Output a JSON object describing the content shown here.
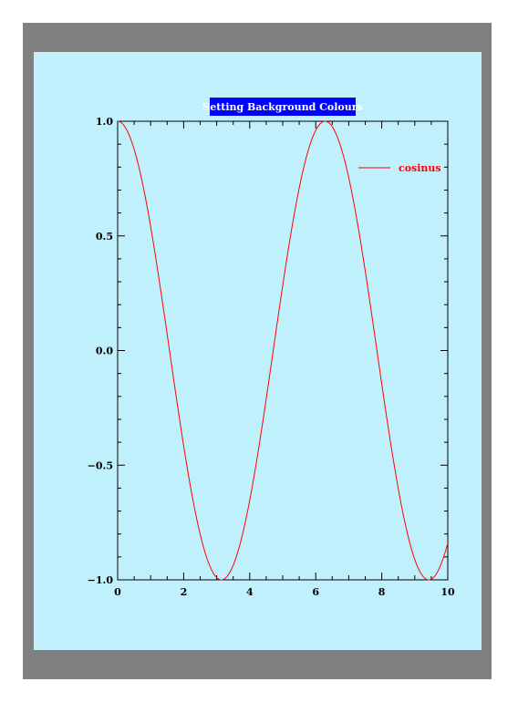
{
  "chart_data": {
    "type": "line",
    "title": "Setting Background Colours",
    "xlabel": "",
    "ylabel": "",
    "xlim": [
      0,
      10
    ],
    "ylim": [
      -1.0,
      1.0
    ],
    "x_ticks": [
      "0",
      "2",
      "4",
      "6",
      "8",
      "10"
    ],
    "y_ticks": [
      "1.0",
      "0.5",
      "0.0",
      "−0.5",
      "−1.0"
    ],
    "grid": false,
    "legend_position": "top-right",
    "series": [
      {
        "name": "cosinus",
        "color": "#ff0000",
        "function": "cos(x)",
        "x": [
          0,
          0.5,
          1,
          1.5,
          2,
          2.5,
          3,
          3.14,
          3.5,
          4,
          4.5,
          5,
          5.5,
          6,
          6.28,
          6.5,
          7,
          7.5,
          8,
          8.5,
          9,
          9.42,
          9.5,
          10
        ],
        "y": [
          1.0,
          0.878,
          0.54,
          0.071,
          -0.416,
          -0.801,
          -0.99,
          -1.0,
          -0.936,
          -0.654,
          -0.211,
          0.284,
          0.709,
          0.96,
          1.0,
          0.977,
          0.754,
          0.347,
          -0.146,
          -0.602,
          -0.911,
          -1.0,
          -0.997,
          -0.839
        ]
      }
    ]
  },
  "colors": {
    "frame": "#808080",
    "background": "#c0f0fc",
    "title_background": "#0000ff",
    "title_text": "#ffffff",
    "axis": "#000000"
  }
}
